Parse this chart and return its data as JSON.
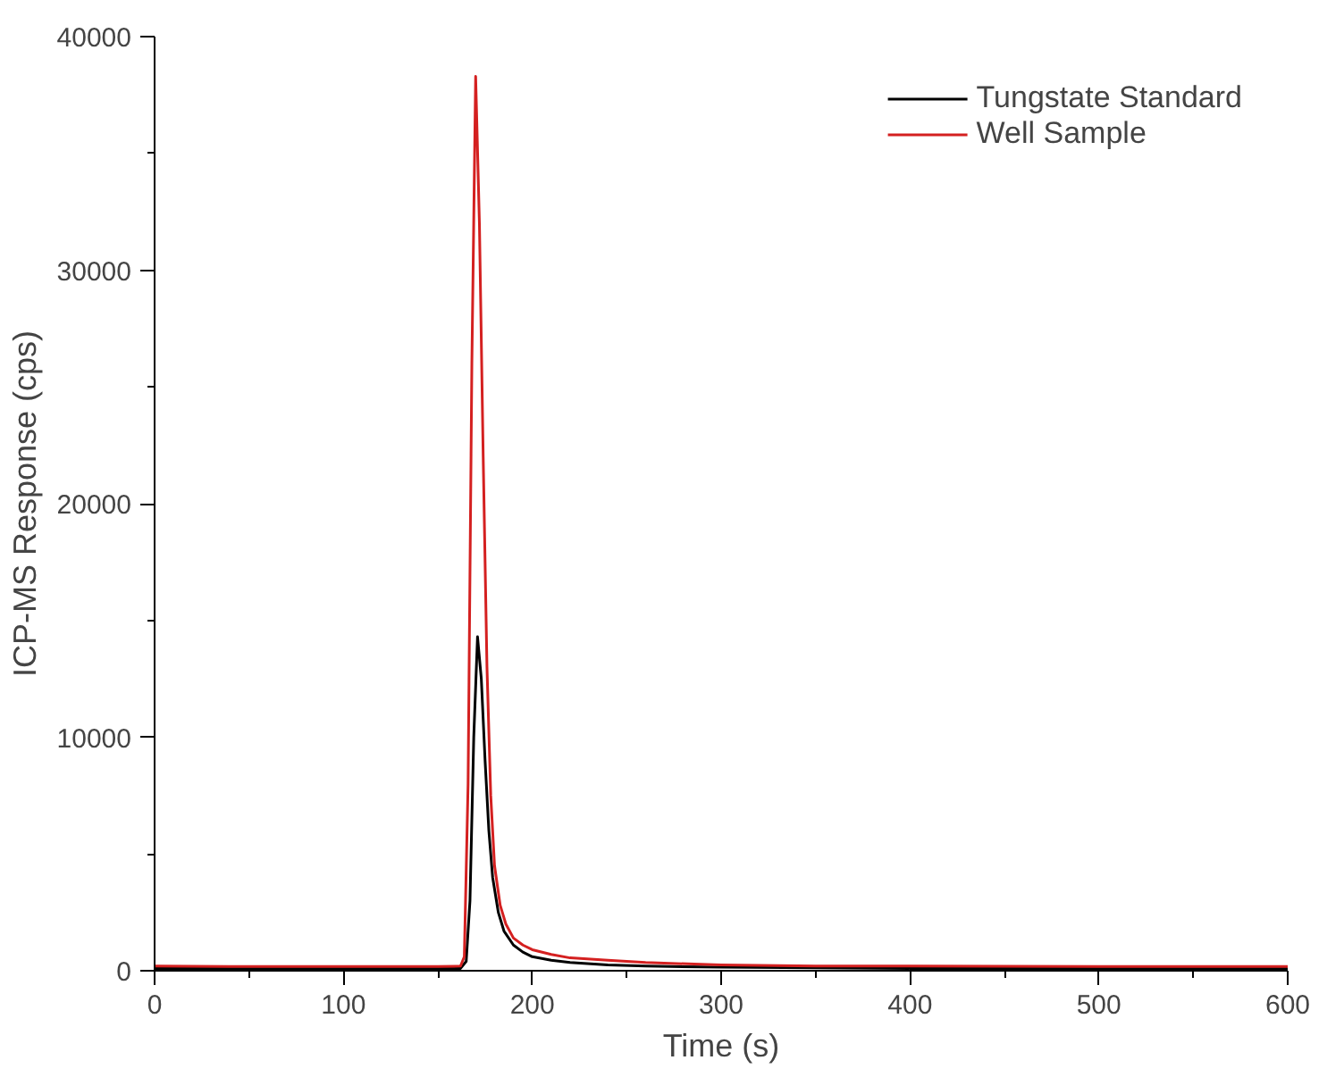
{
  "chart_data": {
    "type": "line",
    "xlabel": "Time (s)",
    "ylabel": "ICP-MS Response (cps)",
    "xlim": [
      0,
      600
    ],
    "ylim": [
      0,
      40000
    ],
    "xticks": [
      0,
      100,
      200,
      300,
      400,
      500,
      600
    ],
    "yticks": [
      0,
      10000,
      20000,
      30000,
      40000
    ],
    "legend": "top right",
    "grid": false,
    "series": [
      {
        "name": "Tungstate Standard",
        "color": "#000000",
        "x": [
          0,
          50,
          100,
          150,
          162,
          165,
          167,
          169,
          171,
          173,
          175,
          177,
          179,
          182,
          185,
          190,
          195,
          200,
          210,
          220,
          240,
          260,
          300,
          350,
          400,
          500,
          600
        ],
        "values": [
          100,
          100,
          100,
          100,
          100,
          400,
          3000,
          10000,
          14300,
          12500,
          9000,
          6000,
          4000,
          2500,
          1700,
          1100,
          800,
          600,
          450,
          350,
          250,
          200,
          150,
          120,
          100,
          100,
          100
        ]
      },
      {
        "name": "Well Sample",
        "color": "#d42020",
        "x": [
          0,
          50,
          100,
          150,
          162,
          164,
          166,
          168,
          170,
          172,
          174,
          176,
          178,
          180,
          183,
          186,
          190,
          195,
          200,
          210,
          220,
          240,
          260,
          300,
          350,
          400,
          500,
          600
        ],
        "values": [
          200,
          180,
          180,
          180,
          200,
          600,
          8000,
          26000,
          38300,
          32000,
          22000,
          13000,
          7500,
          4500,
          2800,
          2000,
          1400,
          1100,
          900,
          700,
          550,
          450,
          350,
          250,
          200,
          200,
          180,
          180
        ]
      }
    ]
  }
}
